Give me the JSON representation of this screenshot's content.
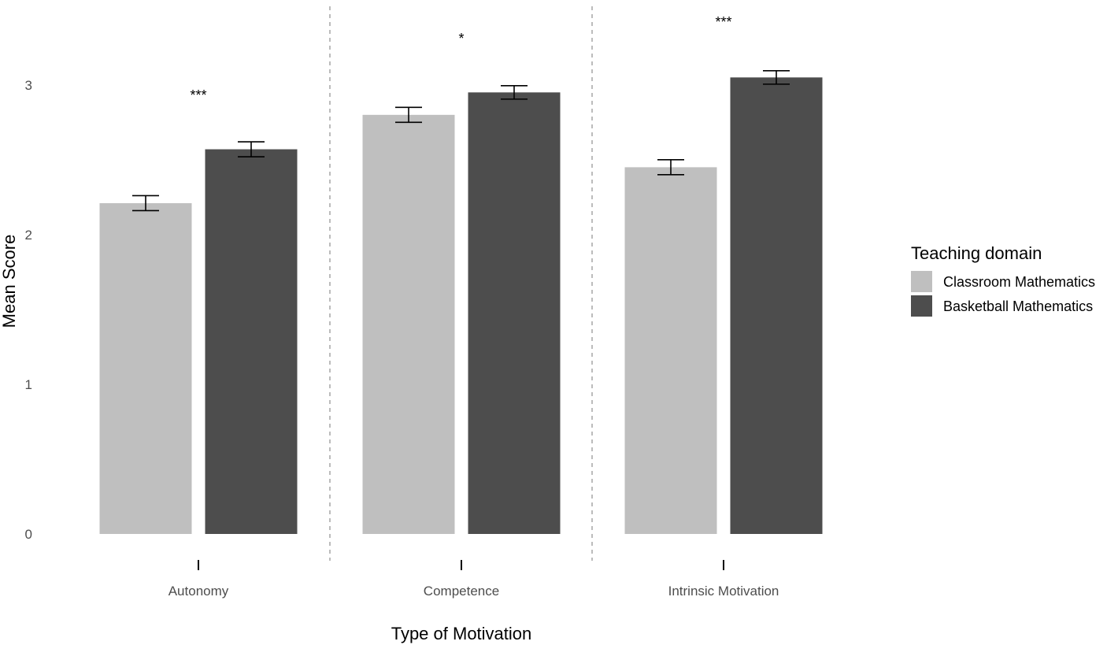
{
  "chart_data": {
    "type": "bar",
    "title": "",
    "xlabel": "Type of Motivation",
    "ylabel": "Mean Score",
    "categories": [
      "Autonomy",
      "Competence",
      "Intrinsic Motivation"
    ],
    "series": [
      {
        "name": "Classroom Mathematics",
        "color": "#bfbfbf",
        "values": [
          2.21,
          2.8,
          2.45
        ],
        "error": [
          0.05,
          0.05,
          0.05
        ]
      },
      {
        "name": "Basketball Mathematics",
        "color": "#4d4d4d",
        "values": [
          2.57,
          2.95,
          3.05
        ],
        "error": [
          0.05,
          0.045,
          0.045
        ]
      }
    ],
    "significance": [
      "***",
      "*",
      "***"
    ],
    "significance_y": [
      2.93,
      3.31,
      3.42
    ],
    "ylim": [
      0,
      3.42
    ],
    "yticks": [
      0,
      1,
      2,
      3
    ],
    "grid": false,
    "category_separators": "dashed",
    "legend": {
      "title": "Teaching domain",
      "position": "right"
    }
  }
}
